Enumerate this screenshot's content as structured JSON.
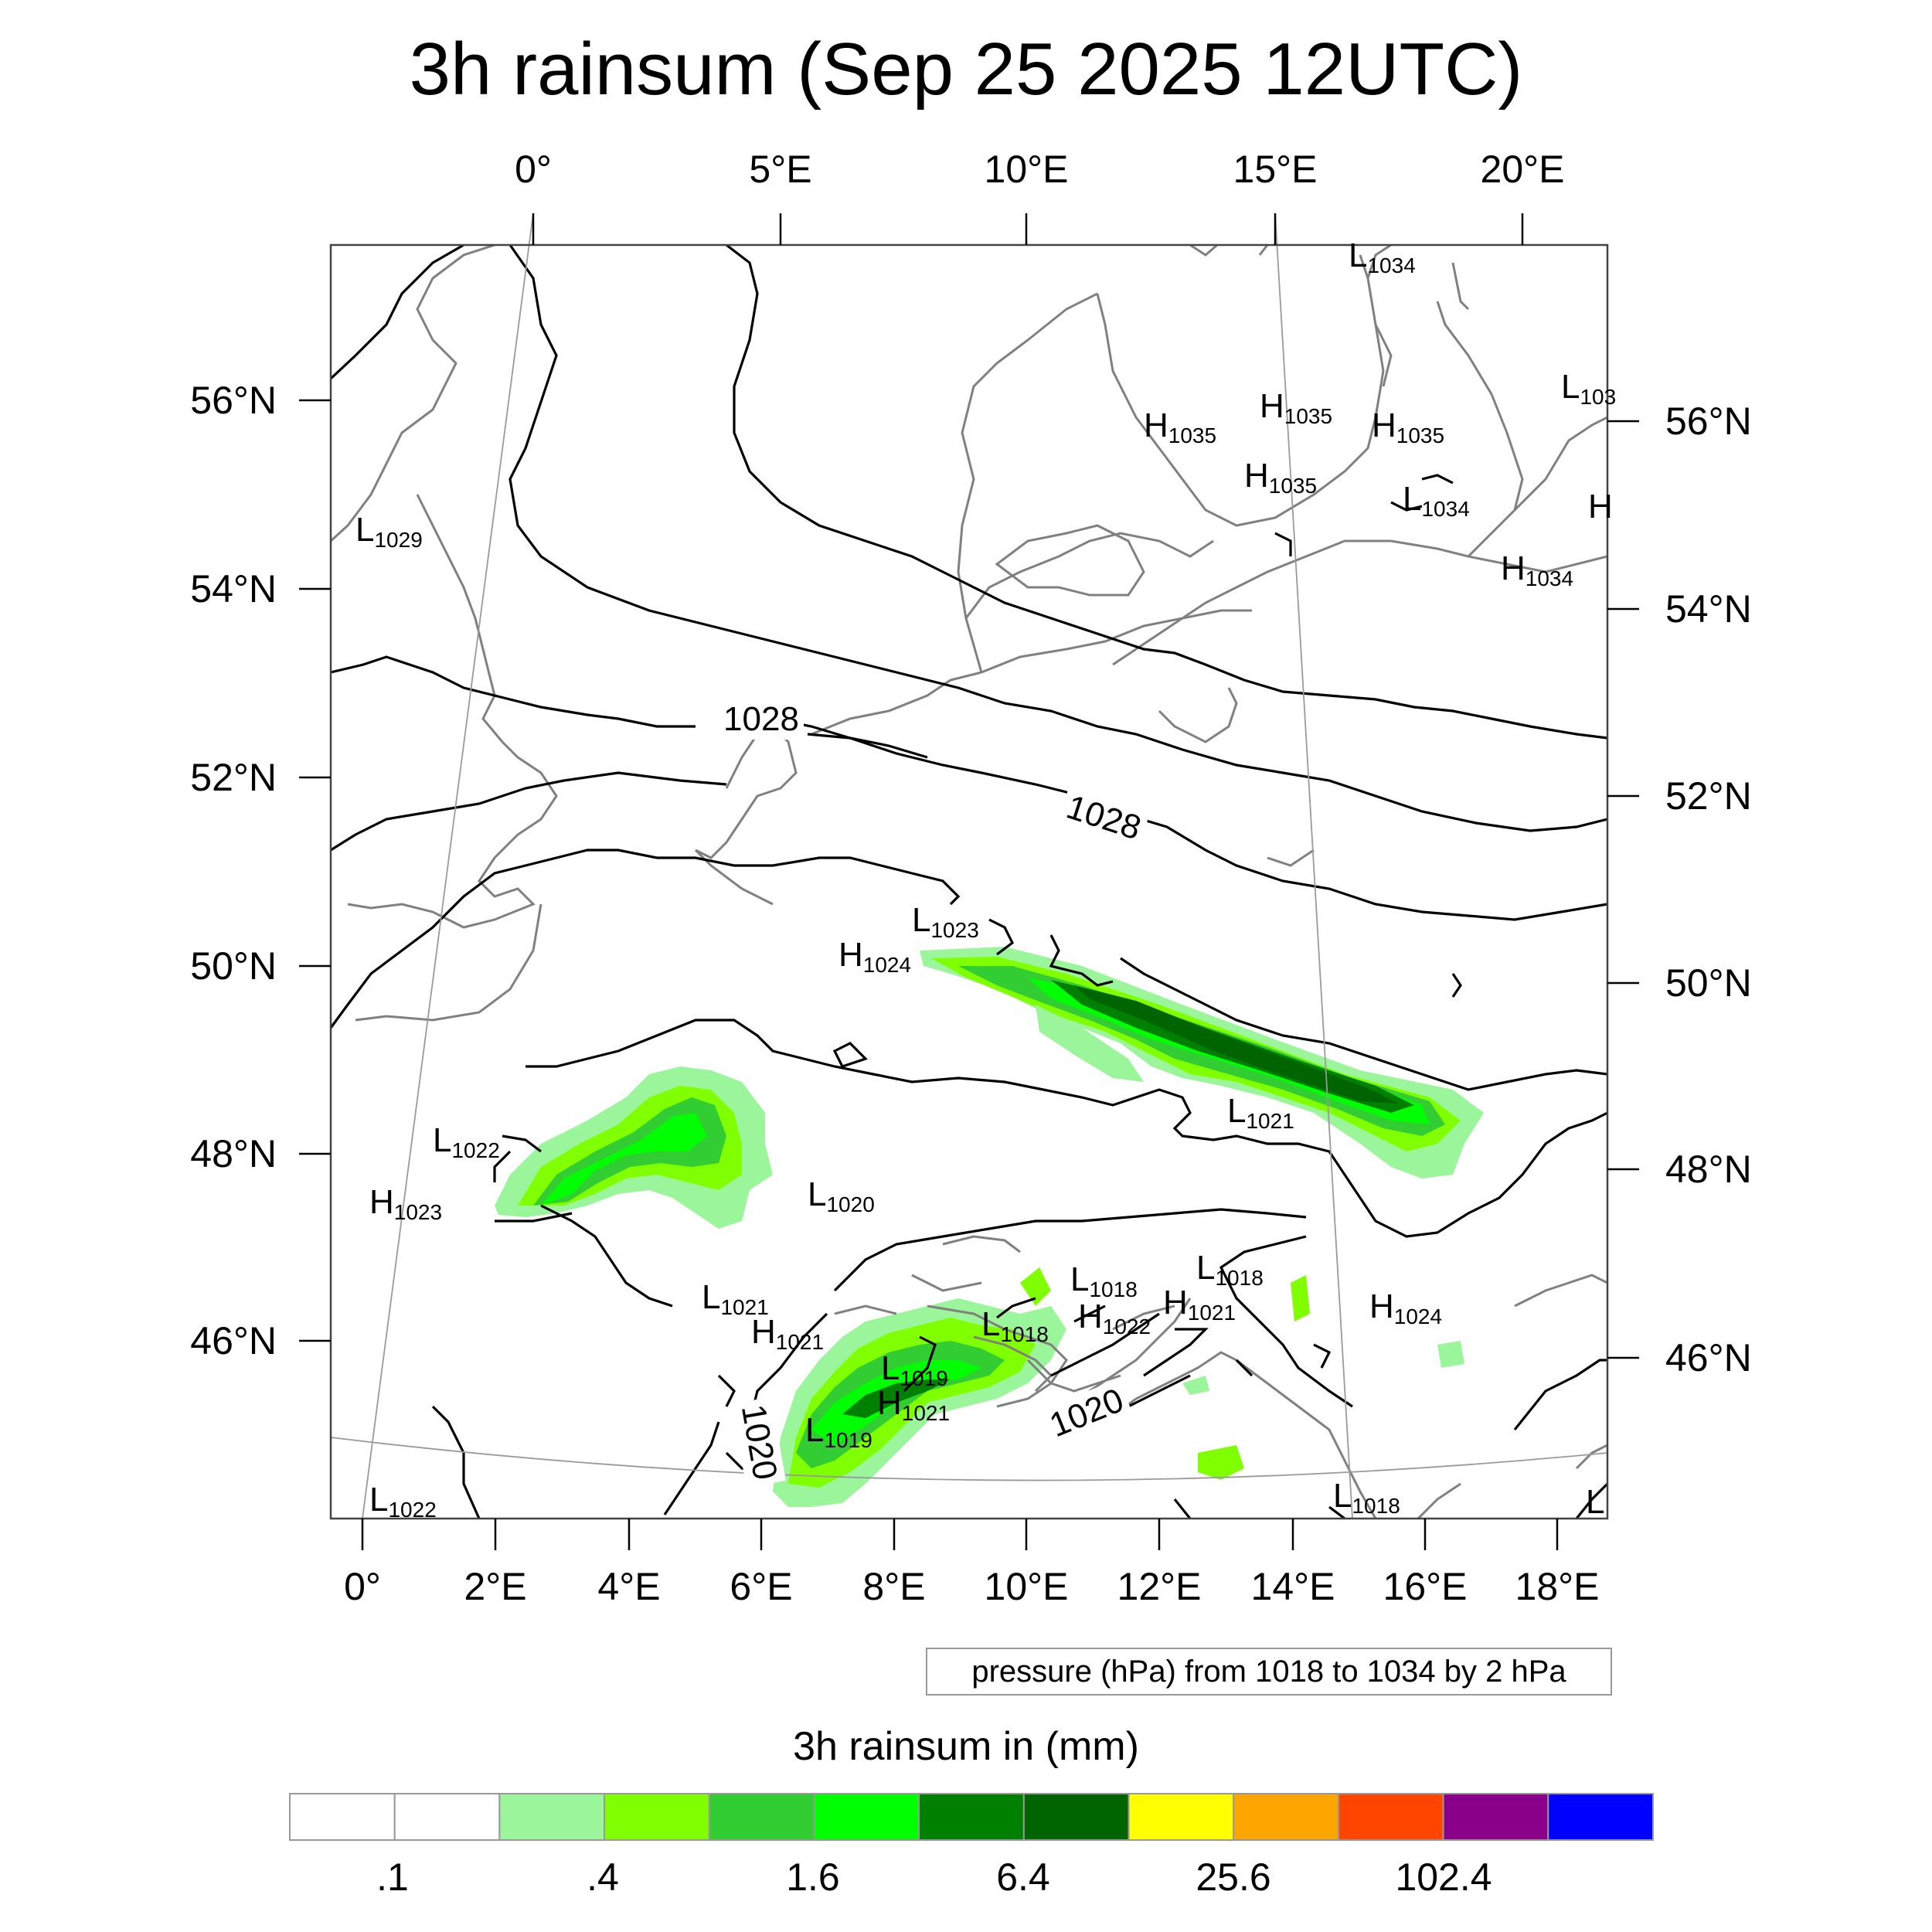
{
  "title": "3h rainsum (Sep 25 2025 12UTC)",
  "top_lon_labels": [
    "0°",
    "5°E",
    "10°E",
    "15°E",
    "20°E"
  ],
  "bottom_lon_labels": [
    "0°",
    "2°E",
    "4°E",
    "6°E",
    "8°E",
    "10°E",
    "12°E",
    "14°E",
    "16°E",
    "18°E"
  ],
  "left_lat_labels": [
    "56°N",
    "54°N",
    "52°N",
    "50°N",
    "48°N",
    "46°N"
  ],
  "right_lat_labels": [
    "56°N",
    "54°N",
    "52°N",
    "50°N",
    "48°N",
    "46°N"
  ],
  "pressure_centers": [
    {
      "type": "L",
      "value": "1034"
    },
    {
      "type": "L",
      "value": "103"
    },
    {
      "type": "H",
      "value": "1035"
    },
    {
      "type": "H",
      "value": "1035"
    },
    {
      "type": "H",
      "value": "1035"
    },
    {
      "type": "H",
      "value": "1035"
    },
    {
      "type": "L",
      "value": "1034"
    },
    {
      "type": "H",
      "value": ""
    },
    {
      "type": "H",
      "value": "1034"
    },
    {
      "type": "L",
      "value": "1029"
    },
    {
      "type": "L",
      "value": "1023"
    },
    {
      "type": "H",
      "value": "1024"
    },
    {
      "type": "L",
      "value": "1022"
    },
    {
      "type": "H",
      "value": "1023"
    },
    {
      "type": "L",
      "value": "1020"
    },
    {
      "type": "L",
      "value": "1021"
    },
    {
      "type": "L",
      "value": "1021"
    },
    {
      "type": "H",
      "value": "1021"
    },
    {
      "type": "L",
      "value": "1018"
    },
    {
      "type": "L",
      "value": "1018"
    },
    {
      "type": "H",
      "value": "1021"
    },
    {
      "type": "L",
      "value": "1018"
    },
    {
      "type": "H",
      "value": "1022"
    },
    {
      "type": "L",
      "value": "1019"
    },
    {
      "type": "H",
      "value": "1021"
    },
    {
      "type": "L",
      "value": "1019"
    },
    {
      "type": "H",
      "value": "1024"
    },
    {
      "type": "L",
      "value": "1018"
    },
    {
      "type": "L",
      "value": "1022"
    },
    {
      "type": "L",
      "value": ""
    }
  ],
  "isobar_labels": [
    "1028",
    "1028",
    "1020",
    "1020"
  ],
  "contour_info": "pressure (hPa) from 1018 to 1034 by 2 hPa",
  "colorbar": {
    "title": "3h rainsum in (mm)",
    "colors": [
      "#ffffff",
      "#ffffff",
      "#9bf59b",
      "#80ff00",
      "#32cd32",
      "#00ff00",
      "#008000",
      "#006400",
      "#ffff00",
      "#ffa500",
      "#ff4500",
      "#8b008b",
      "#0000ff"
    ],
    "labels": [
      ".1",
      ".4",
      "1.6",
      "6.4",
      "25.6",
      "102.4"
    ]
  }
}
